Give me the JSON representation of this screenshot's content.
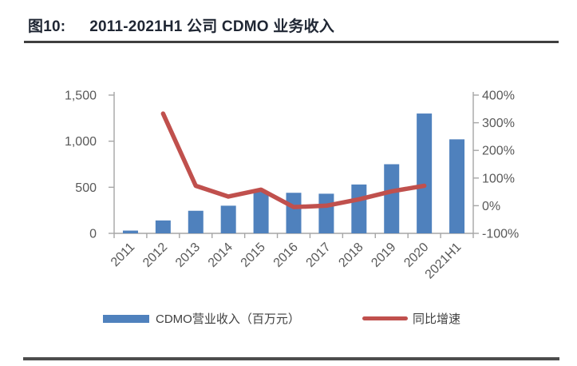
{
  "figure": {
    "label": "图10:",
    "title": "2011-2021H1 公司 CDMO 业务收入"
  },
  "legend": {
    "revenue": {
      "label": "CDMO营业收入（百万元）",
      "color": "#4F81BD"
    },
    "growth": {
      "label": "同比增速",
      "color": "#C0504D"
    }
  },
  "chart_data": {
    "type": "bar+line",
    "title": "2011-2021H1 公司 CDMO 业务收入",
    "categories": [
      "2011",
      "2012",
      "2013",
      "2014",
      "2015",
      "2016",
      "2017",
      "2018",
      "2019",
      "2020",
      "2021H1"
    ],
    "series": [
      {
        "name": "CDMO营业收入（百万元）",
        "type": "bar",
        "axis": "left",
        "color": "#4F81BD",
        "values": [
          30,
          140,
          245,
          300,
          450,
          440,
          430,
          530,
          750,
          1300,
          1020
        ]
      },
      {
        "name": "同比增速",
        "type": "line",
        "axis": "right",
        "color": "#C0504D",
        "values": [
          null,
          333,
          72,
          33,
          58,
          -5,
          0,
          23,
          52,
          72,
          null
        ]
      }
    ],
    "left_axis": {
      "min": 0,
      "max": 1500,
      "ticks": [
        {
          "label": "0",
          "value": 0
        },
        {
          "label": "500",
          "value": 500
        },
        {
          "label": "1,000",
          "value": 1000
        },
        {
          "label": "1,500",
          "value": 1500
        }
      ]
    },
    "right_axis": {
      "min": -100,
      "max": 400,
      "ticks": [
        {
          "label": "-100%",
          "value": -100
        },
        {
          "label": "0%",
          "value": 0
        },
        {
          "label": "100%",
          "value": 100
        },
        {
          "label": "200%",
          "value": 200
        },
        {
          "label": "300%",
          "value": 300
        },
        {
          "label": "400%",
          "value": 400
        }
      ]
    },
    "legend_position": "bottom",
    "grid": false
  }
}
